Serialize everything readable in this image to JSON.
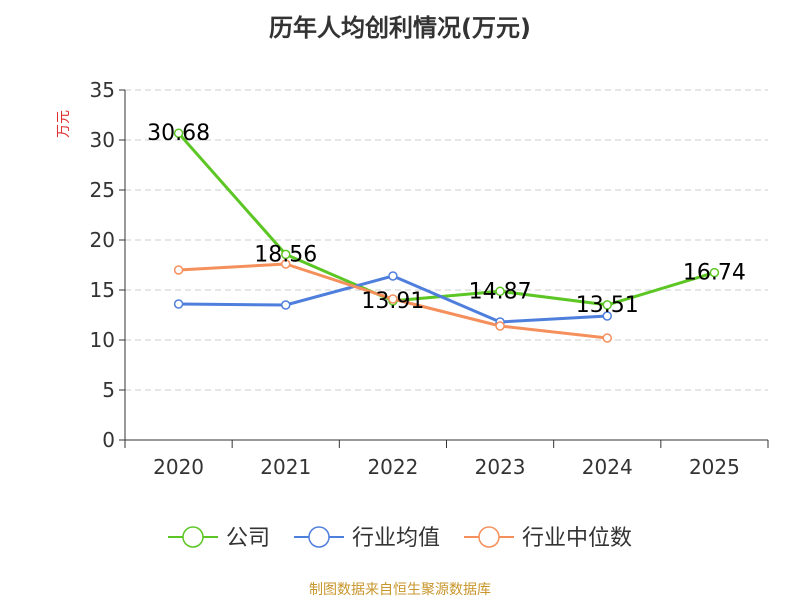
{
  "chart_data": {
    "type": "line",
    "title": "历年人均创利情况(万元)",
    "ylabel": "万元",
    "xlabel": "",
    "categories": [
      "2020",
      "2021",
      "2022",
      "2023",
      "2024",
      "2025"
    ],
    "ylim": [
      0,
      35
    ],
    "yticks": [
      0,
      5,
      10,
      15,
      20,
      25,
      30,
      35
    ],
    "grid": true,
    "legend_position": "bottom",
    "series": [
      {
        "name": "公司",
        "color": "#5cc624",
        "values": [
          30.68,
          18.56,
          13.91,
          14.87,
          13.51,
          16.74
        ],
        "labels": [
          "30.68",
          "18.56",
          "13.91",
          "14.87",
          "13.51",
          "16.74"
        ]
      },
      {
        "name": "行业均值",
        "color": "#4f7fdc",
        "values": [
          13.6,
          13.5,
          16.4,
          11.8,
          12.4,
          null
        ]
      },
      {
        "name": "行业中位数",
        "color": "#f5905c",
        "values": [
          17.0,
          17.6,
          14.1,
          11.4,
          10.2,
          null
        ]
      }
    ]
  },
  "source": "制图数据来自恒生聚源数据库",
  "colors": {
    "title": "#333333",
    "axis": "#333333",
    "grid": "#cccccc",
    "ylabel": "#e03030",
    "source": "#c8962c"
  }
}
